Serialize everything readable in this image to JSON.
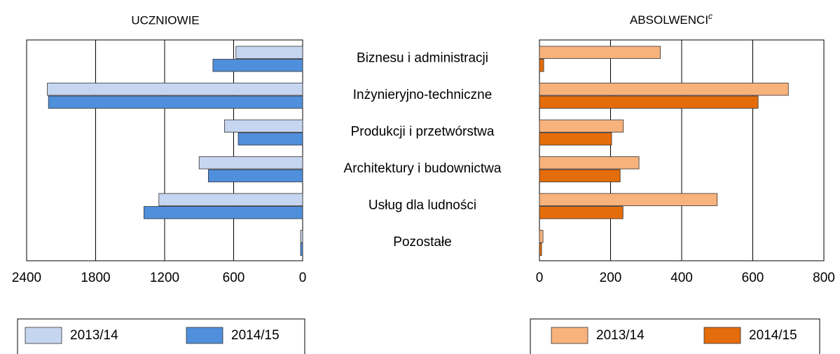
{
  "chart_data": [
    {
      "type": "barh",
      "title": "UCZNIOWIE",
      "categories": [
        "Biznesu i administracji",
        "Inżynieryjno-techniczne",
        "Produkcji i przetwórstwa",
        "Architektury i budownictwa",
        "Usług dla ludności",
        "Pozostałe"
      ],
      "series": [
        {
          "name": "2013/14",
          "color": "#c6d6f0",
          "values": [
            580,
            2220,
            680,
            900,
            1250,
            18
          ]
        },
        {
          "name": "2014/15",
          "color": "#4f8fdc",
          "values": [
            780,
            2210,
            560,
            820,
            1380,
            18
          ]
        }
      ],
      "xlim": [
        0,
        2400
      ],
      "xticks": [
        0,
        600,
        1200,
        1800,
        2400
      ],
      "x_reversed": true,
      "grid": true,
      "legend": "bottom"
    },
    {
      "type": "barh",
      "title": "ABSOLWENCI",
      "title_note": "c",
      "series": [
        {
          "name": "2013/14",
          "color": "#f8b27c",
          "values": [
            340,
            700,
            236,
            280,
            500,
            10
          ]
        },
        {
          "name": "2014/15",
          "color": "#e46c0a",
          "values": [
            12,
            615,
            203,
            227,
            235,
            6
          ]
        }
      ],
      "xlim": [
        0,
        800
      ],
      "xticks": [
        0,
        200,
        400,
        600,
        800
      ],
      "x_reversed": false,
      "grid": true,
      "legend": "bottom"
    }
  ]
}
